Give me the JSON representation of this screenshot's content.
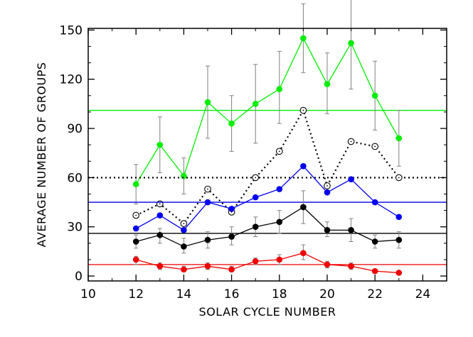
{
  "chart_data": {
    "type": "line",
    "title": "",
    "xlabel": "SOLAR CYCLE NUMBER",
    "ylabel": "AVERAGE NUMBER OF GROUPS",
    "xlim": [
      10,
      25
    ],
    "ylim": [
      -3,
      151
    ],
    "xticks": [
      10,
      12,
      14,
      16,
      18,
      20,
      22,
      24
    ],
    "yticks": [
      0,
      30,
      60,
      90,
      120,
      150
    ],
    "grid": false,
    "legend": "none",
    "x": [
      12,
      13,
      14,
      15,
      16,
      17,
      18,
      19,
      20,
      21,
      22,
      23
    ],
    "series": [
      {
        "color": "#00ee00",
        "line": "solid",
        "marker": "filled",
        "values": [
          56,
          80,
          61,
          106,
          93,
          105,
          114,
          145,
          117,
          142,
          110,
          84
        ],
        "err_low": [
          44,
          63,
          50,
          84,
          76,
          81,
          93,
          124,
          99,
          114,
          89,
          67
        ],
        "err_high": [
          68,
          97,
          72,
          128,
          110,
          129,
          137,
          166,
          136,
          171,
          131,
          101
        ],
        "mean": 101
      },
      {
        "color": "#000000",
        "line": "dotted",
        "marker": "open",
        "values": [
          37,
          44,
          32,
          53,
          39,
          60,
          76,
          101,
          55,
          82,
          79,
          60
        ],
        "mean": 60
      },
      {
        "color": "#0000ee",
        "line": "solid",
        "marker": "filled",
        "values": [
          29,
          37,
          28,
          45,
          41,
          48,
          53,
          67,
          51,
          59,
          45,
          36
        ],
        "mean": 45
      },
      {
        "color": "#000000",
        "line": "solid",
        "marker": "filled",
        "values": [
          21,
          25,
          18,
          22,
          24,
          30,
          33,
          42,
          28,
          28,
          21,
          22
        ],
        "err_low": [
          17,
          20,
          14,
          17,
          19,
          24,
          26,
          32,
          24,
          21,
          17,
          17
        ],
        "err_high": [
          25,
          29,
          23,
          27,
          30,
          36,
          40,
          52,
          33,
          35,
          25,
          27
        ],
        "mean": 26
      },
      {
        "color": "#ee0000",
        "line": "solid",
        "marker": "filled",
        "values": [
          10,
          6,
          4,
          6,
          4,
          9,
          10,
          14,
          7,
          6,
          3,
          2
        ],
        "err_low": [
          7,
          4,
          3,
          4,
          3,
          7,
          7,
          10,
          5,
          4,
          2,
          1
        ],
        "err_high": [
          12,
          8,
          6,
          8,
          6,
          11,
          13,
          19,
          9,
          8,
          4,
          3
        ],
        "mean": 7
      }
    ]
  }
}
